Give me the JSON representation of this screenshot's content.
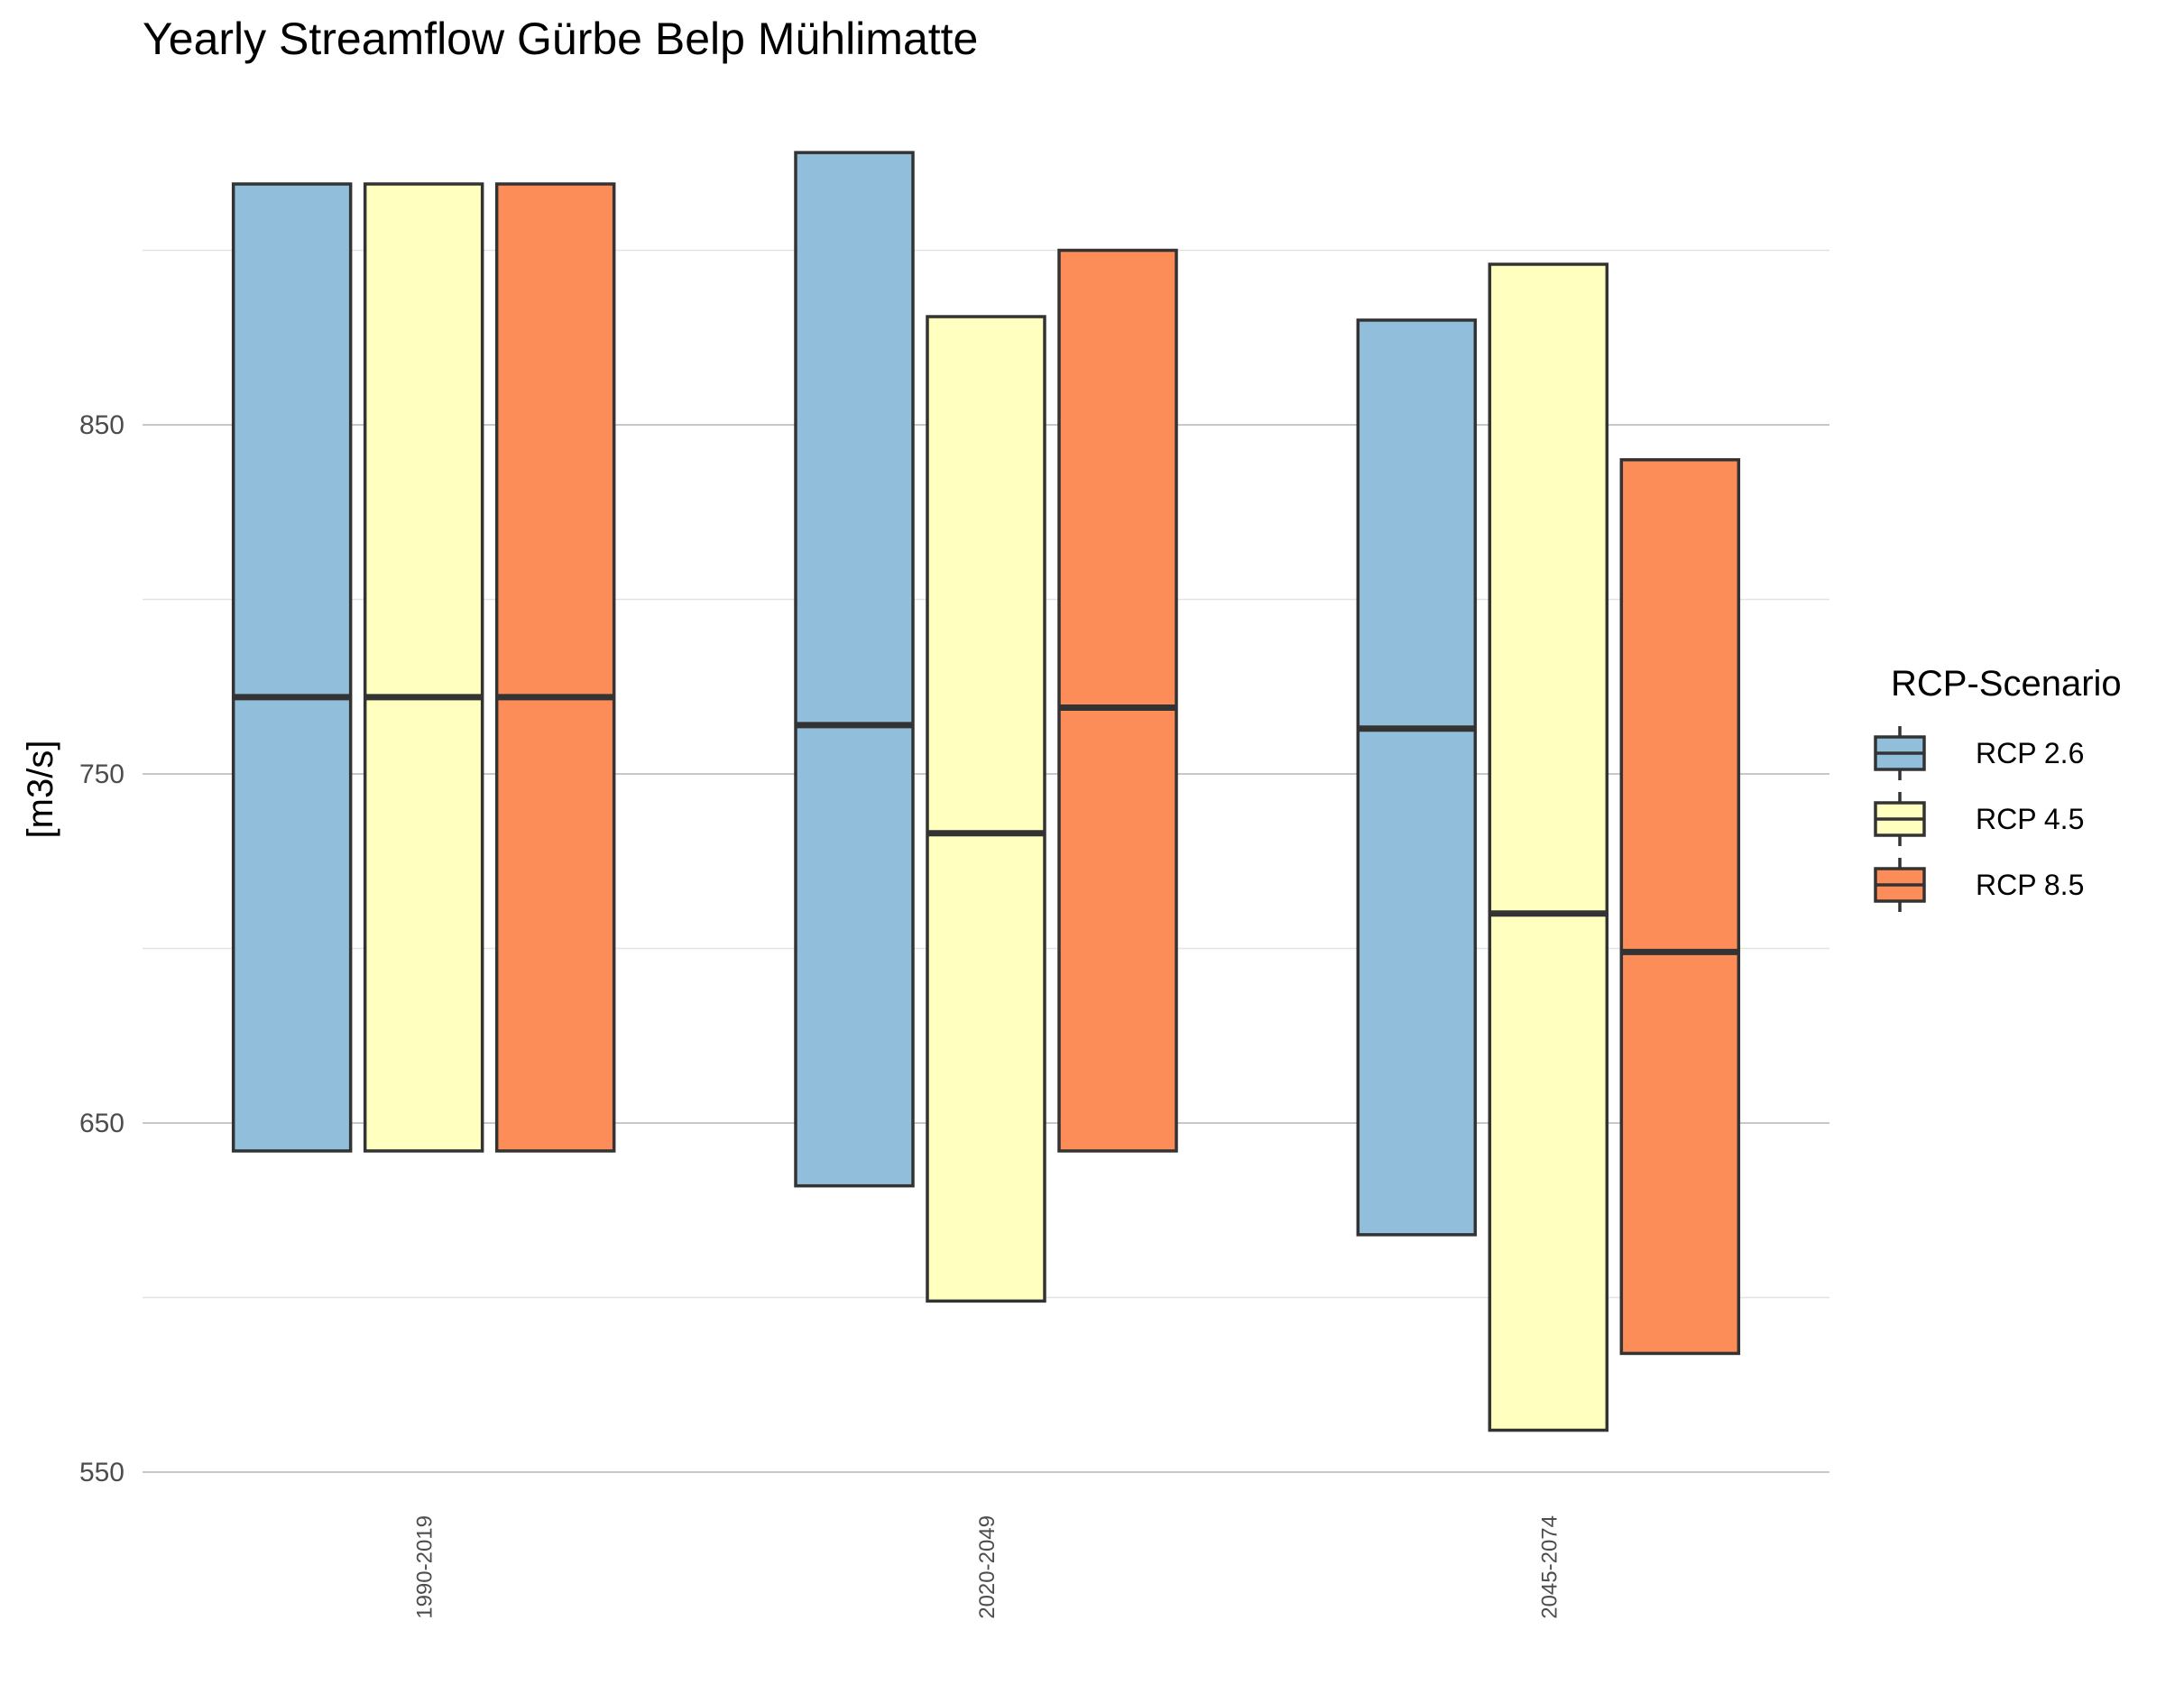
{
  "chart_data": {
    "type": "box",
    "title": "Yearly Streamflow Gürbe Belp Mühlimatte",
    "xlabel": "",
    "ylabel": "[m3/s]",
    "ylim": [
      550,
      950
    ],
    "y_ticks": [
      550,
      650,
      750,
      850
    ],
    "y_minor_ticks": [
      600,
      700,
      800,
      900
    ],
    "grid": true,
    "categories": [
      "1990-2019",
      "2020-2049",
      "2045-2074"
    ],
    "legend": {
      "title": "RCP-Scenario",
      "position": "right"
    },
    "series": [
      {
        "name": "RCP 2.6",
        "color": "#91bfdb",
        "boxes": [
          {
            "lower": 642,
            "median": 772,
            "upper": 919
          },
          {
            "lower": 632,
            "median": 764,
            "upper": 928
          },
          {
            "lower": 618,
            "median": 763,
            "upper": 880
          }
        ]
      },
      {
        "name": "RCP 4.5",
        "color": "#ffffbf",
        "boxes": [
          {
            "lower": 642,
            "median": 772,
            "upper": 919
          },
          {
            "lower": 599,
            "median": 733,
            "upper": 881
          },
          {
            "lower": 562,
            "median": 710,
            "upper": 896
          }
        ]
      },
      {
        "name": "RCP 8.5",
        "color": "#fc8d59",
        "boxes": [
          {
            "lower": 642,
            "median": 772,
            "upper": 919
          },
          {
            "lower": 642,
            "median": 769,
            "upper": 900
          },
          {
            "lower": 584,
            "median": 699,
            "upper": 840
          }
        ]
      }
    ]
  }
}
